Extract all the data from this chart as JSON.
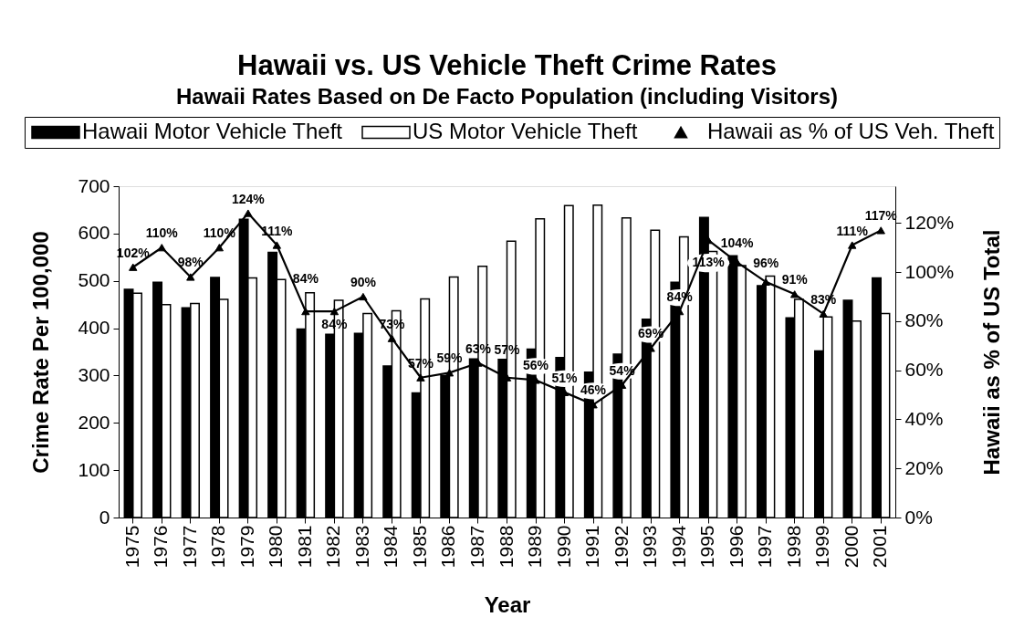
{
  "chart_data": {
    "type": "bar",
    "title": "Hawaii vs. US Vehicle Theft Crime Rates",
    "subtitle": "Hawaii Rates Based on De Facto Population (including Visitors)",
    "xlabel": "Year",
    "ylabel": "Crime Rate Per 100,000",
    "y2label": "Hawaii as % of US Total",
    "categories": [
      "1975",
      "1976",
      "1977",
      "1978",
      "1979",
      "1980",
      "1981",
      "1982",
      "1983",
      "1984",
      "1985",
      "1986",
      "1987",
      "1988",
      "1989",
      "1990",
      "1991",
      "1992",
      "1993",
      "1994",
      "1995",
      "1996",
      "1997",
      "1998",
      "1999",
      "2000",
      "2001"
    ],
    "series": [
      {
        "name": "Hawaii Motor Vehicle Theft",
        "color": "#000000",
        "values": [
          482,
          497,
          443,
          507,
          630,
          560,
          398,
          387,
          389,
          320,
          263,
          300,
          335,
          334,
          356,
          338,
          307,
          345,
          419,
          497,
          634,
          553,
          490,
          422,
          352,
          459,
          506
        ]
      },
      {
        "name": "US Motor Vehicle Theft",
        "color": "#ffffff",
        "values": [
          474,
          450,
          452,
          461,
          506,
          503,
          475,
          459,
          431,
          437,
          462,
          508,
          531,
          584,
          631,
          659,
          660,
          633,
          607,
          593,
          562,
          532,
          510,
          461,
          424,
          415,
          431
        ]
      },
      {
        "name": "Hawaii as % of US Veh. Theft",
        "type": "line",
        "axis": "y2",
        "color": "#000000",
        "values": [
          102,
          110,
          98,
          110,
          124,
          111,
          84,
          84,
          90,
          73,
          57,
          59,
          63,
          57,
          56,
          51,
          46,
          54,
          69,
          84,
          113,
          104,
          96,
          91,
          83,
          111,
          117
        ],
        "value_labels": [
          "102%",
          "110%",
          "98%",
          "110%",
          "124%",
          "111%",
          "84%",
          "84%",
          "90%",
          "73%",
          "57%",
          "59%",
          "63%",
          "57%",
          "56%",
          "51%",
          "46%",
          "54%",
          "69%",
          "84%",
          "113%",
          "104%",
          "96%",
          "91%",
          "83%",
          "111%",
          "117%"
        ]
      }
    ],
    "ylim": [
      0,
      700
    ],
    "yticks": [
      0,
      100,
      200,
      300,
      400,
      500,
      600,
      700
    ],
    "y2lim": [
      0,
      135
    ],
    "y2ticks": [
      {
        "value": 0,
        "label": "0%"
      },
      {
        "value": 20,
        "label": "20%"
      },
      {
        "value": 40,
        "label": "40%"
      },
      {
        "value": 60,
        "label": "60%"
      },
      {
        "value": 80,
        "label": "80%"
      },
      {
        "value": 100,
        "label": "100%"
      },
      {
        "value": 120,
        "label": "120%"
      }
    ],
    "marker": "triangle",
    "legend": "top",
    "grid": false
  }
}
